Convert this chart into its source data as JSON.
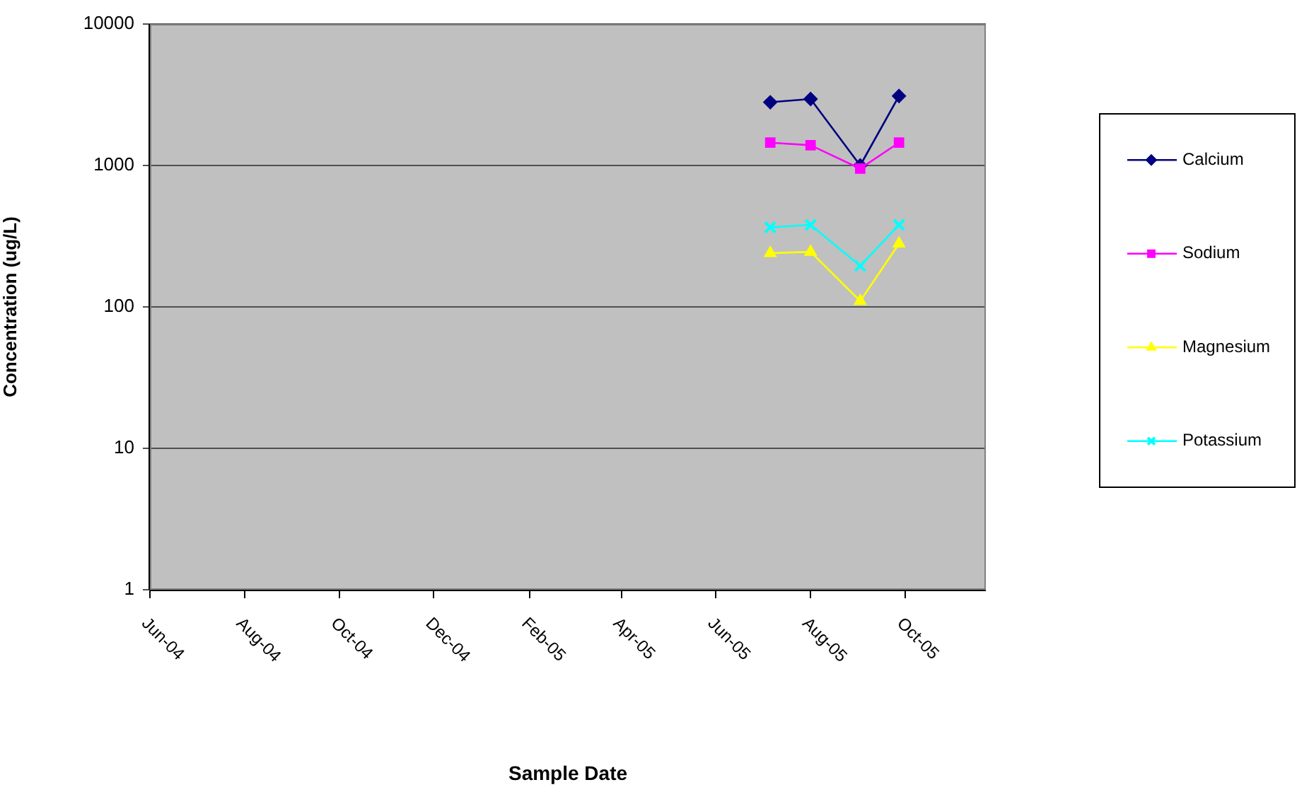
{
  "chart_data": {
    "type": "line",
    "xlabel": "Sample Date",
    "ylabel": "Concentration (ug/L)",
    "log": "y",
    "grid": "y",
    "legend": "right",
    "line_style": "solid",
    "x": [
      "2005-07-06",
      "2005-08-01",
      "2005-09-02",
      "2005-09-27"
    ],
    "xlim": [
      "2004-06-01",
      "2005-11-22"
    ],
    "xticks": [
      {
        "value": "2004-06-01",
        "label": "Jun-04"
      },
      {
        "value": "2004-08-01",
        "label": "Aug-04"
      },
      {
        "value": "2004-10-01",
        "label": "Oct-04"
      },
      {
        "value": "2004-12-01",
        "label": "Dec-04"
      },
      {
        "value": "2005-02-01",
        "label": "Feb-05"
      },
      {
        "value": "2005-04-01",
        "label": "Apr-05"
      },
      {
        "value": "2005-06-01",
        "label": "Jun-05"
      },
      {
        "value": "2005-08-01",
        "label": "Aug-05"
      },
      {
        "value": "2005-10-01",
        "label": "Oct-05"
      }
    ],
    "ylim": [
      1,
      10000
    ],
    "yticks": [
      1,
      10,
      100,
      1000,
      10000
    ],
    "series": [
      {
        "name": "Calcium",
        "color": "#000080",
        "marker": "diamond",
        "values": [
          2800,
          2950,
          1000,
          3100
        ]
      },
      {
        "name": "Sodium",
        "color": "#ff00ff",
        "marker": "square",
        "values": [
          1450,
          1390,
          950,
          1450
        ]
      },
      {
        "name": "Magnesium",
        "color": "#ffff00",
        "marker": "triangle",
        "values": [
          240,
          245,
          110,
          280
        ]
      },
      {
        "name": "Potassium",
        "color": "#00ffff",
        "marker": "cross",
        "values": [
          365,
          380,
          195,
          380
        ]
      }
    ]
  }
}
